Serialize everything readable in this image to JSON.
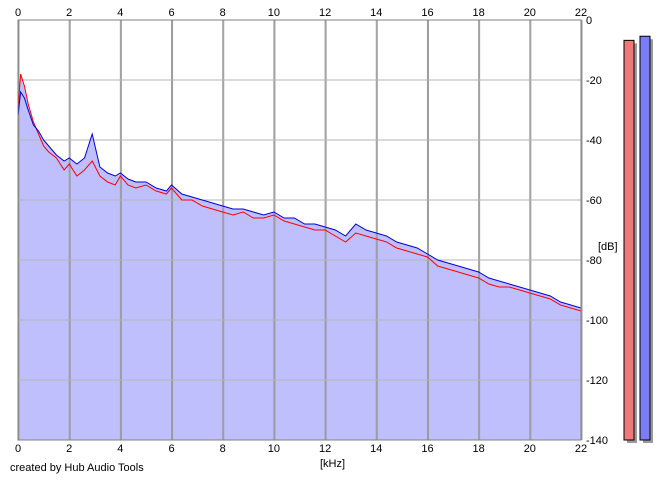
{
  "chart_data": {
    "type": "line",
    "title": "",
    "xlabel": "[kHz]",
    "ylabel": "[dB]",
    "xlim": [
      0,
      22
    ],
    "ylim": [
      -140,
      0
    ],
    "x_ticks": [
      0,
      2,
      4,
      6,
      8,
      10,
      12,
      14,
      16,
      18,
      20,
      22
    ],
    "y_ticks": [
      0,
      -20,
      -40,
      -60,
      -80,
      -100,
      -120,
      -140
    ],
    "grid": true,
    "x_axis_labels_top_and_bottom": true,
    "y_axis_side": "right",
    "plot_fill_color": "#bfbffe",
    "series": [
      {
        "color": "#ff0000",
        "x": [
          0,
          0.1,
          0.25,
          0.4,
          0.6,
          0.8,
          1.0,
          1.2,
          1.5,
          1.8,
          2.0,
          2.3,
          2.6,
          2.9,
          3.2,
          3.5,
          3.8,
          4.0,
          4.3,
          4.6,
          5.0,
          5.4,
          5.8,
          6.0,
          6.4,
          6.8,
          7.2,
          7.6,
          8.0,
          8.4,
          8.8,
          9.2,
          9.6,
          10.0,
          10.4,
          10.8,
          11.2,
          11.6,
          12.0,
          12.4,
          12.8,
          13.2,
          13.6,
          14.0,
          14.4,
          14.8,
          15.2,
          15.6,
          16.0,
          16.4,
          16.8,
          17.2,
          17.6,
          18.0,
          18.4,
          18.8,
          19.2,
          19.6,
          20.0,
          20.4,
          20.8,
          21.2,
          21.6,
          22.0
        ],
        "y": [
          -30,
          -18,
          -22,
          -28,
          -34,
          -38,
          -42,
          -44,
          -46,
          -50,
          -48,
          -52,
          -50,
          -47,
          -52,
          -54,
          -55,
          -52,
          -55,
          -56,
          -55,
          -57,
          -58,
          -56,
          -60,
          -60,
          -62,
          -63,
          -64,
          -65,
          -64,
          -66,
          -66,
          -65,
          -67,
          -68,
          -69,
          -70,
          -70,
          -72,
          -74,
          -71,
          -72,
          -73,
          -74,
          -76,
          -77,
          -78,
          -79,
          -82,
          -83,
          -84,
          -85,
          -86,
          -88,
          -89,
          -89,
          -90,
          -91,
          -92,
          -93,
          -95,
          -96,
          -97
        ]
      },
      {
        "color": "#0000e0",
        "x": [
          0,
          0.1,
          0.25,
          0.4,
          0.6,
          0.8,
          1.0,
          1.2,
          1.5,
          1.8,
          2.0,
          2.3,
          2.6,
          2.9,
          3.2,
          3.5,
          3.8,
          4.0,
          4.3,
          4.6,
          5.0,
          5.4,
          5.8,
          6.0,
          6.4,
          6.8,
          7.2,
          7.6,
          8.0,
          8.4,
          8.8,
          9.2,
          9.6,
          10.0,
          10.4,
          10.8,
          11.2,
          11.6,
          12.0,
          12.4,
          12.8,
          13.2,
          13.6,
          14.0,
          14.4,
          14.8,
          15.2,
          15.6,
          16.0,
          16.4,
          16.8,
          17.2,
          17.6,
          18.0,
          18.4,
          18.8,
          19.2,
          19.6,
          20.0,
          20.4,
          20.8,
          21.2,
          21.6,
          22.0
        ],
        "y": [
          -32,
          -24,
          -26,
          -30,
          -35,
          -37,
          -40,
          -42,
          -45,
          -47,
          -46,
          -48,
          -46,
          -38,
          -49,
          -51,
          -52,
          -51,
          -53,
          -54,
          -54,
          -56,
          -57,
          -55,
          -58,
          -59,
          -60,
          -61,
          -62,
          -63,
          -63,
          -64,
          -65,
          -64,
          -66,
          -66,
          -68,
          -68,
          -69,
          -70,
          -72,
          -68,
          -70,
          -71,
          -72,
          -74,
          -75,
          -76,
          -78,
          -80,
          -81,
          -82,
          -83,
          -84,
          -86,
          -87,
          -88,
          -89,
          -90,
          -91,
          -92,
          -94,
          -95,
          -96
        ]
      }
    ]
  },
  "meters": {
    "left_color": "#ef7878",
    "right_color": "#7c7cf5",
    "left_level": 0.97,
    "right_level": 0.98
  },
  "footer": {
    "credit": "created by Hub Audio Tools"
  }
}
